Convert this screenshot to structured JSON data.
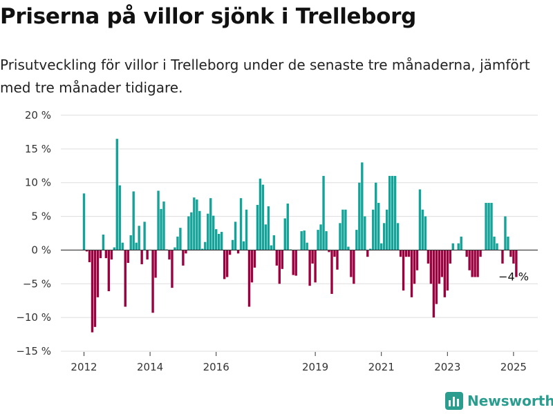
{
  "header": {
    "title": "Priserna på villor sjönk i Trelleborg",
    "subtitle": "Prisutveckling för villor i Trelleborg under de senaste tre månaderna, jämfört med tre månader tidigare."
  },
  "logo": {
    "text": "Newsworthy",
    "icon": "bar-chart-logo-icon"
  },
  "colors": {
    "positive": "#13a398",
    "negative": "#9b003f",
    "grid": "#dddddd",
    "zero": "#333333"
  },
  "chart_data": {
    "type": "bar",
    "x_start": "2012-01",
    "x_ticks": [
      "2012",
      "2014",
      "2016",
      "2019",
      "2021",
      "2023",
      "2025"
    ],
    "y_ticks": [
      "20 %",
      "15 %",
      "10 %",
      "5 %",
      "0 %",
      "−5 %",
      "−10 %",
      "−15 %"
    ],
    "ylim": [
      -15,
      20
    ],
    "ylabel": "",
    "xlabel": "",
    "annotation": {
      "text": "−4 %",
      "value": -4
    },
    "values": [
      8.4,
      -0.2,
      -1.8,
      -12.2,
      -11.4,
      -7,
      -1.2,
      2.3,
      -1.2,
      -6.1,
      -1.4,
      0.4,
      16.5,
      9.6,
      1.1,
      -8.4,
      -1.9,
      2.2,
      8.7,
      1.1,
      3.6,
      -2.1,
      4.2,
      -1.4,
      0,
      -9.3,
      -4.1,
      8.8,
      6.1,
      7.2,
      0.1,
      -1.4,
      -5.6,
      0.4,
      2,
      3.3,
      -2.3,
      -0.5,
      5,
      5.6,
      7.8,
      7.5,
      5.8,
      0.2,
      1.2,
      5.4,
      7.7,
      5.1,
      3.1,
      2.4,
      2.7,
      -4.3,
      -4,
      -0.7,
      1.5,
      4.2,
      -0.5,
      7.7,
      1.3,
      6,
      -8.4,
      -4.8,
      -2.6,
      6.7,
      10.6,
      9.7,
      3.8,
      6.5,
      0.7,
      2.2,
      -2.3,
      -5,
      -2.8,
      4.7,
      6.9,
      0.1,
      -3.7,
      -3.8,
      0,
      2.8,
      2.9,
      1.1,
      -5.3,
      -2,
      -4.8,
      3,
      3.8,
      11,
      2.8,
      -0.3,
      -6.5,
      -1,
      -2.9,
      4,
      6,
      6,
      0.5,
      -4,
      -5,
      3,
      10,
      13,
      5,
      -1,
      0.2,
      6,
      10,
      7,
      1,
      4,
      6,
      11,
      11,
      11,
      4,
      -1,
      -6,
      -1,
      -1,
      -7,
      -5,
      -3,
      9,
      6,
      5,
      -2,
      -5,
      -10,
      -8,
      -5,
      -4,
      -7,
      -6,
      -2,
      1,
      0,
      1,
      2,
      0,
      -1,
      -3,
      -4,
      -4,
      -4,
      -1,
      0,
      7,
      7,
      7,
      2,
      1,
      0,
      -2,
      5,
      2,
      -1,
      -2,
      -4
    ]
  }
}
